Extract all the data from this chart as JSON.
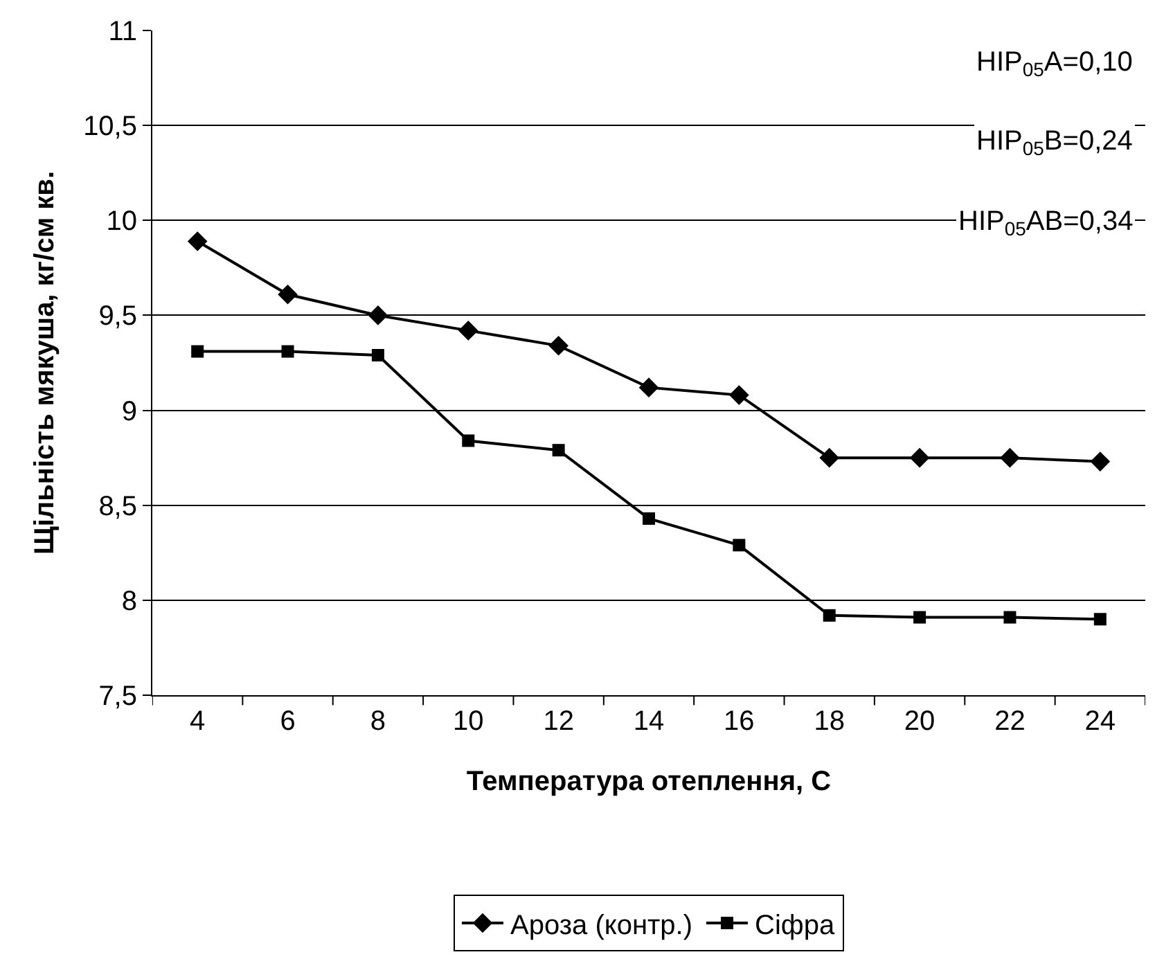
{
  "chart_data": {
    "type": "line",
    "xlabel": "Температура отеплення, С",
    "ylabel": "Щільність мякуша, кг/см кв.",
    "categories": [
      "4",
      "6",
      "8",
      "10",
      "12",
      "14",
      "16",
      "18",
      "20",
      "22",
      "24"
    ],
    "series": [
      {
        "name": "Ароза (контр.)",
        "color": "#000000",
        "marker": "diamond",
        "values": [
          9.89,
          9.61,
          9.5,
          9.42,
          9.34,
          9.12,
          9.08,
          8.75,
          8.75,
          8.75,
          8.73
        ]
      },
      {
        "name": "Сіфра",
        "color": "#000000",
        "marker": "square",
        "values": [
          9.31,
          9.31,
          9.29,
          8.84,
          8.79,
          8.43,
          8.29,
          7.92,
          7.91,
          7.91,
          7.9
        ]
      }
    ],
    "ylim": [
      7.5,
      11
    ],
    "yticks": [
      {
        "value": 7.5,
        "label": "7,5"
      },
      8,
      {
        "value": 8.5,
        "label": "8,5"
      },
      9,
      {
        "value": 9.5,
        "label": "9,5"
      },
      10,
      {
        "value": 10.5,
        "label": "10,5"
      },
      11
    ],
    "annotations": [
      "HIP$_{05}$A=0,10",
      "HIP$_{05}$B=0,24",
      "HIP$_{05}$AB=0,34"
    ],
    "grid": "y",
    "legend": "bottom",
    "line_style": "solid"
  }
}
